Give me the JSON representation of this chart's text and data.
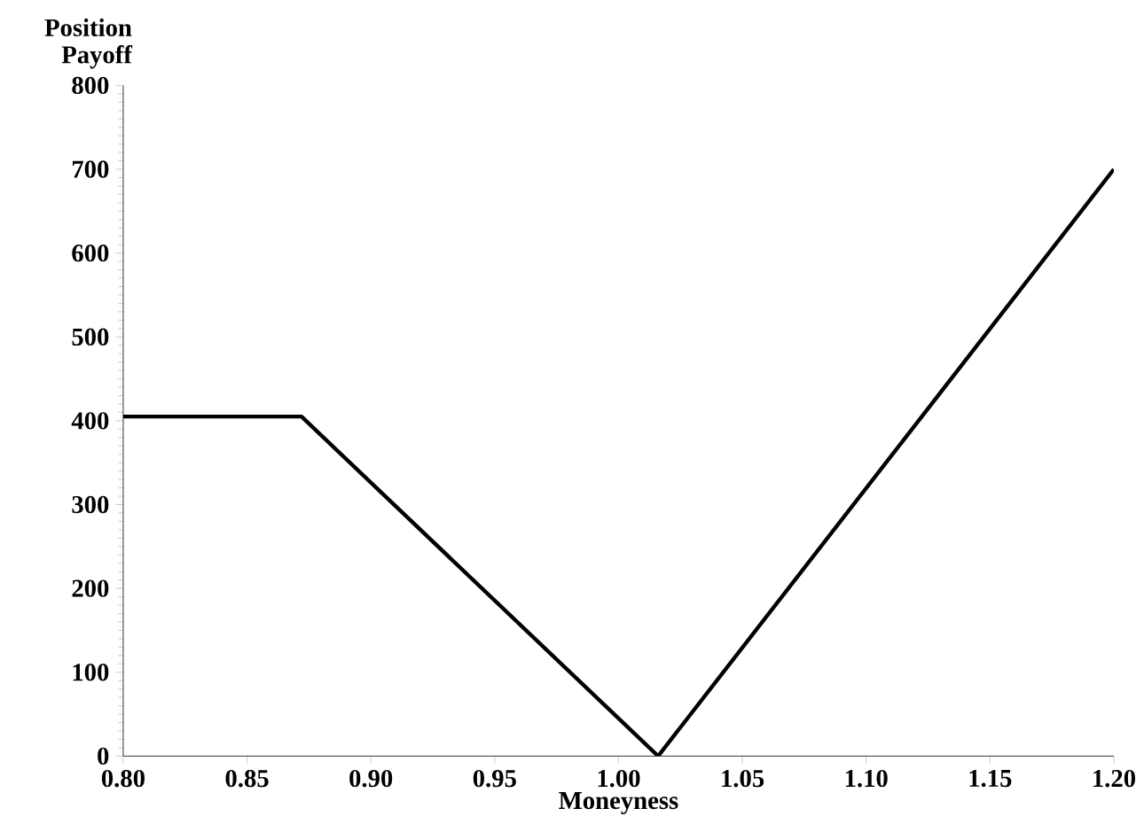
{
  "chart_data": {
    "type": "line",
    "ylabel": "Position Payoff",
    "xlabel": "Moneyness",
    "x": [
      0.8,
      0.872,
      1.016,
      1.2
    ],
    "values": [
      405,
      405,
      0,
      700
    ],
    "color": "#000000",
    "xlim": [
      0.8,
      1.2
    ],
    "xticks": [
      {
        "value": 0.8,
        "label": "0.80"
      },
      {
        "value": 0.85,
        "label": "0.85"
      },
      {
        "value": 0.9,
        "label": "0.90"
      },
      {
        "value": 0.95,
        "label": "0.95"
      },
      {
        "value": 1.0,
        "label": "1.00"
      },
      {
        "value": 1.05,
        "label": "1.05"
      },
      {
        "value": 1.1,
        "label": "1.10"
      },
      {
        "value": 1.15,
        "label": "1.15"
      },
      {
        "value": 1.2,
        "label": "1.20"
      }
    ],
    "ylim": [
      0,
      800
    ],
    "yticks": [
      0,
      100,
      200,
      300,
      400,
      500,
      600,
      700,
      800
    ],
    "grid": false,
    "marker": "none",
    "line_style": "solid"
  }
}
